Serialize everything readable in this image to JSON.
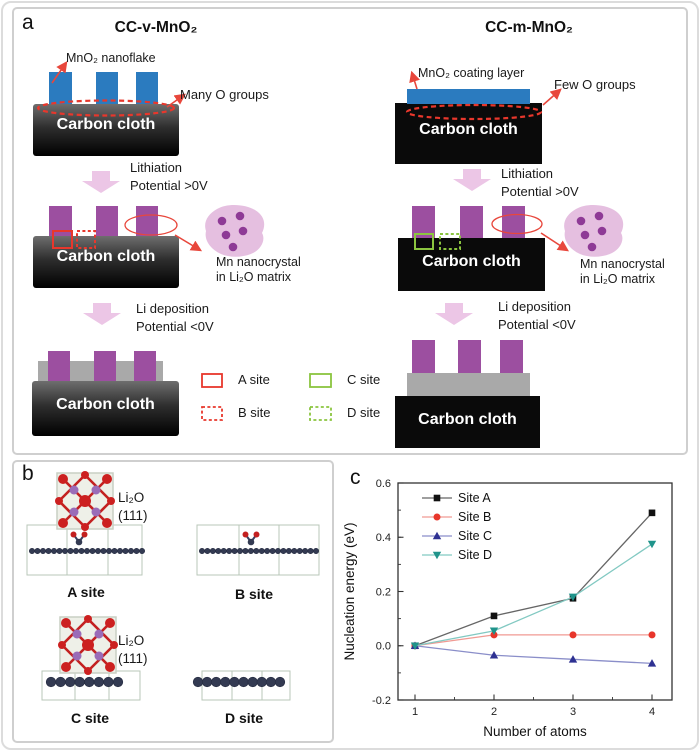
{
  "colors": {
    "mno2_blue": "#2b7bbf",
    "pillar_purple": "#9c4fa0",
    "arrow_pink": "#ecc6e6",
    "blob_pink": "#e5bfe0",
    "nanocrystal_dot": "#8e3a96",
    "accent_red": "#e8473c",
    "accent_green": "#8bc53f",
    "li_slab_gray": "#a9a9a9",
    "carbon_black": "#0a0a0a"
  },
  "panel_a": {
    "label": "a",
    "carbon_cloth": "Carbon cloth",
    "left": {
      "title": "CC-v-MnO₂",
      "material_label": "MnO₂ nanoflake",
      "oxygen_label": "Many O groups",
      "lithiation_line1": "Lithiation",
      "lithiation_line2": "Potential >0V",
      "nanocrystal_line1": "Mn nanocrystal",
      "nanocrystal_line2": "in Li₂O matrix",
      "deposition_line1": "Li deposition",
      "deposition_line2": "Potential <0V"
    },
    "right": {
      "title": "CC-m-MnO₂",
      "material_label": "MnO₂ coating layer",
      "oxygen_label": "Few O groups",
      "lithiation_line1": "Lithiation",
      "lithiation_line2": "Potential >0V",
      "nanocrystal_line1": "Mn nanocrystal",
      "nanocrystal_line2": "in Li₂O matrix",
      "deposition_line1": "Li deposition",
      "deposition_line2": "Potential <0V"
    },
    "site_legend": [
      {
        "label": "A site",
        "color": "#e8473c",
        "style": "solid"
      },
      {
        "label": "B site",
        "color": "#e8473c",
        "style": "dashed"
      },
      {
        "label": "C site",
        "color": "#8bc53f",
        "style": "solid"
      },
      {
        "label": "D site",
        "color": "#8bc53f",
        "style": "dashed"
      }
    ]
  },
  "panel_b": {
    "label": "b",
    "crystal_label_line1": "Li₂O",
    "crystal_label_line2": "(111)",
    "sites": [
      {
        "name": "A site"
      },
      {
        "name": "B site"
      },
      {
        "name": "C site"
      },
      {
        "name": "D site"
      }
    ]
  },
  "panel_c": {
    "label": "c"
  },
  "chart_data": {
    "type": "line",
    "x": [
      1,
      2,
      3,
      4
    ],
    "xticks": [
      1,
      2,
      3,
      4
    ],
    "yticks": [
      -0.2,
      0.0,
      0.2,
      0.4,
      0.6
    ],
    "xlabel": "Number of atoms",
    "ylabel": "Nucleation energy (eV)",
    "xlim": [
      0.7,
      4.35
    ],
    "ylim": [
      -0.2,
      0.6
    ],
    "grid": false,
    "legend_position": "top-left",
    "series": [
      {
        "name": "Site A",
        "marker": "square",
        "color": "#111111",
        "line_color": "#666666",
        "values": [
          0.0,
          0.11,
          0.175,
          0.49
        ]
      },
      {
        "name": "Site B",
        "marker": "circle",
        "color": "#e8362b",
        "line_color": "#f09a93",
        "values": [
          0.0,
          0.04,
          0.04,
          0.04
        ]
      },
      {
        "name": "Site C",
        "marker": "triangle-up",
        "color": "#2e3192",
        "line_color": "#8a8ec9",
        "values": [
          0.0,
          -0.035,
          -0.05,
          -0.065
        ]
      },
      {
        "name": "Site D",
        "marker": "triangle-down",
        "color": "#20948b",
        "line_color": "#82c9c2",
        "values": [
          0.0,
          0.055,
          0.18,
          0.375
        ]
      }
    ]
  }
}
